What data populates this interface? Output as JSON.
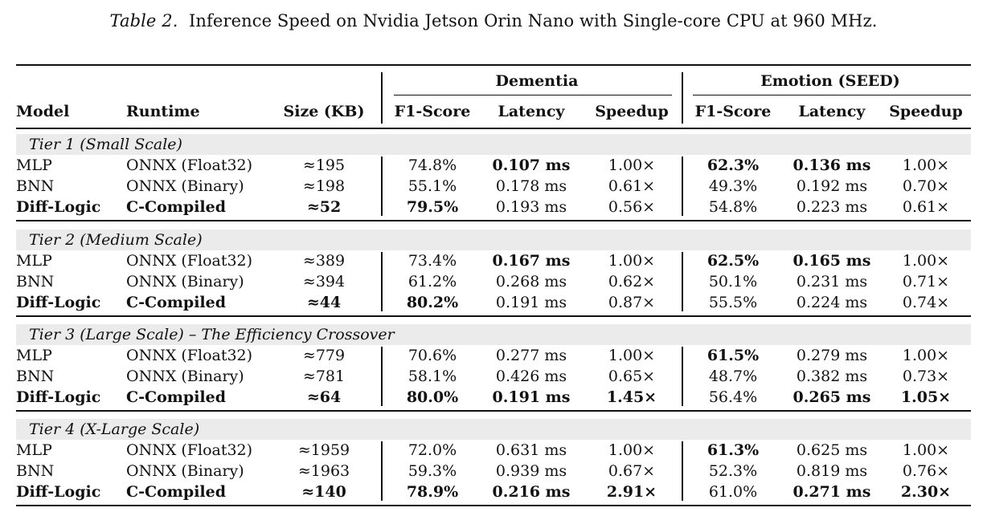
{
  "caption": {
    "label": "Table 2.",
    "text": "Inference Speed on Nvidia Jetson Orin Nano with Single-core CPU at 960 MHz."
  },
  "header": {
    "group_dementia": "Dementia",
    "group_emotion": "Emotion (SEED)",
    "columns": [
      "Model",
      "Runtime",
      "Size (KB)",
      "F1-Score",
      "Latency",
      "Speedup",
      "F1-Score",
      "Latency",
      "Speedup"
    ]
  },
  "tiers": [
    {
      "label": "Tier 1 (Small Scale)",
      "rows": [
        {
          "cells": [
            "MLP",
            "ONNX (Float32)",
            "≈195",
            "74.8%",
            "0.107 ms",
            "1.00×",
            "62.3%",
            "0.136 ms",
            "1.00×"
          ],
          "bold": [
            false,
            false,
            false,
            false,
            true,
            false,
            true,
            true,
            false
          ]
        },
        {
          "cells": [
            "BNN",
            "ONNX (Binary)",
            "≈198",
            "55.1%",
            "0.178 ms",
            "0.61×",
            "49.3%",
            "0.192 ms",
            "0.70×"
          ],
          "bold": [
            false,
            false,
            false,
            false,
            false,
            false,
            false,
            false,
            false
          ]
        },
        {
          "cells": [
            "Diff-Logic",
            "C-Compiled",
            "≈52",
            "79.5%",
            "0.193 ms",
            "0.56×",
            "54.8%",
            "0.223 ms",
            "0.61×"
          ],
          "bold": [
            true,
            true,
            true,
            true,
            false,
            false,
            false,
            false,
            false
          ]
        }
      ]
    },
    {
      "label": "Tier 2 (Medium Scale)",
      "rows": [
        {
          "cells": [
            "MLP",
            "ONNX (Float32)",
            "≈389",
            "73.4%",
            "0.167 ms",
            "1.00×",
            "62.5%",
            "0.165 ms",
            "1.00×"
          ],
          "bold": [
            false,
            false,
            false,
            false,
            true,
            false,
            true,
            true,
            false
          ]
        },
        {
          "cells": [
            "BNN",
            "ONNX (Binary)",
            "≈394",
            "61.2%",
            "0.268 ms",
            "0.62×",
            "50.1%",
            "0.231 ms",
            "0.71×"
          ],
          "bold": [
            false,
            false,
            false,
            false,
            false,
            false,
            false,
            false,
            false
          ]
        },
        {
          "cells": [
            "Diff-Logic",
            "C-Compiled",
            "≈44",
            "80.2%",
            "0.191 ms",
            "0.87×",
            "55.5%",
            "0.224 ms",
            "0.74×"
          ],
          "bold": [
            true,
            true,
            true,
            true,
            false,
            false,
            false,
            false,
            false
          ]
        }
      ]
    },
    {
      "label": "Tier 3 (Large Scale) – The Efficiency Crossover",
      "rows": [
        {
          "cells": [
            "MLP",
            "ONNX (Float32)",
            "≈779",
            "70.6%",
            "0.277 ms",
            "1.00×",
            "61.5%",
            "0.279 ms",
            "1.00×"
          ],
          "bold": [
            false,
            false,
            false,
            false,
            false,
            false,
            true,
            false,
            false
          ]
        },
        {
          "cells": [
            "BNN",
            "ONNX (Binary)",
            "≈781",
            "58.1%",
            "0.426 ms",
            "0.65×",
            "48.7%",
            "0.382 ms",
            "0.73×"
          ],
          "bold": [
            false,
            false,
            false,
            false,
            false,
            false,
            false,
            false,
            false
          ]
        },
        {
          "cells": [
            "Diff-Logic",
            "C-Compiled",
            "≈64",
            "80.0%",
            "0.191 ms",
            "1.45×",
            "56.4%",
            "0.265 ms",
            "1.05×"
          ],
          "bold": [
            true,
            true,
            true,
            true,
            true,
            true,
            false,
            true,
            true
          ]
        }
      ]
    },
    {
      "label": "Tier 4 (X-Large Scale)",
      "rows": [
        {
          "cells": [
            "MLP",
            "ONNX (Float32)",
            "≈1959",
            "72.0%",
            "0.631 ms",
            "1.00×",
            "61.3%",
            "0.625 ms",
            "1.00×"
          ],
          "bold": [
            false,
            false,
            false,
            false,
            false,
            false,
            true,
            false,
            false
          ]
        },
        {
          "cells": [
            "BNN",
            "ONNX (Binary)",
            "≈1963",
            "59.3%",
            "0.939 ms",
            "0.67×",
            "52.3%",
            "0.819 ms",
            "0.76×"
          ],
          "bold": [
            false,
            false,
            false,
            false,
            false,
            false,
            false,
            false,
            false
          ]
        },
        {
          "cells": [
            "Diff-Logic",
            "C-Compiled",
            "≈140",
            "78.9%",
            "0.216 ms",
            "2.91×",
            "61.0%",
            "0.271 ms",
            "2.30×"
          ],
          "bold": [
            true,
            true,
            true,
            true,
            true,
            true,
            false,
            true,
            true
          ]
        }
      ]
    }
  ]
}
